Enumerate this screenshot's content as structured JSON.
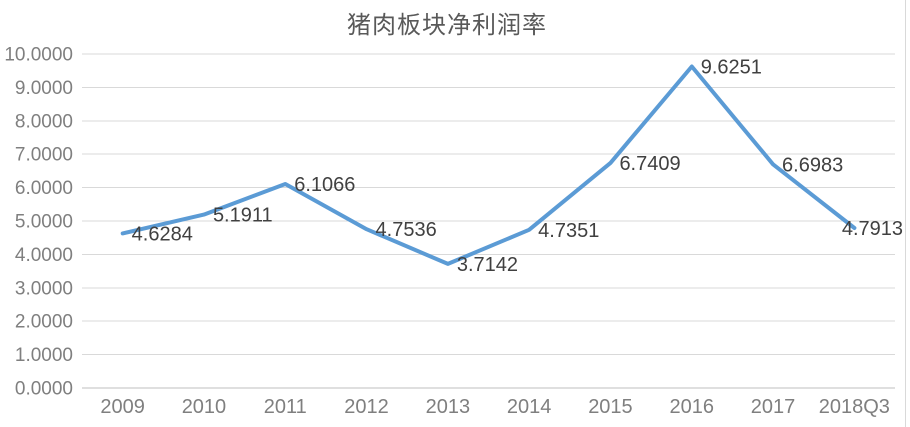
{
  "chart_data": {
    "type": "line",
    "title": "猪肉板块净利润率",
    "xlabel": "",
    "ylabel": "",
    "categories": [
      "2009",
      "2010",
      "2011",
      "2012",
      "2013",
      "2014",
      "2015",
      "2016",
      "2017",
      "2018Q3"
    ],
    "values": [
      4.6284,
      5.1911,
      6.1066,
      4.7536,
      3.7142,
      4.7351,
      6.7409,
      9.6251,
      6.6983,
      4.7913
    ],
    "data_labels": [
      "4.6284",
      "5.1911",
      "6.1066",
      "4.7536",
      "3.7142",
      "4.7351",
      "6.7409",
      "9.6251",
      "6.6983",
      "4.7913"
    ],
    "ylim": [
      0,
      10
    ],
    "ytick_step": 1,
    "yticklabels": [
      "0.0000",
      "1.0000",
      "2.0000",
      "3.0000",
      "4.0000",
      "5.0000",
      "6.0000",
      "7.0000",
      "8.0000",
      "9.0000",
      "10.0000"
    ],
    "grid": true,
    "legend": false,
    "data_label_position": "right",
    "colors": {
      "series_line": "#5b9bd5",
      "gridline": "#d9d9d9",
      "axis_line": "#bfbfbf",
      "tick_label": "#7f7f7f",
      "data_label": "#404040",
      "title": "#595959",
      "chart_border": "#d9d9d9",
      "background": "#ffffff"
    }
  }
}
